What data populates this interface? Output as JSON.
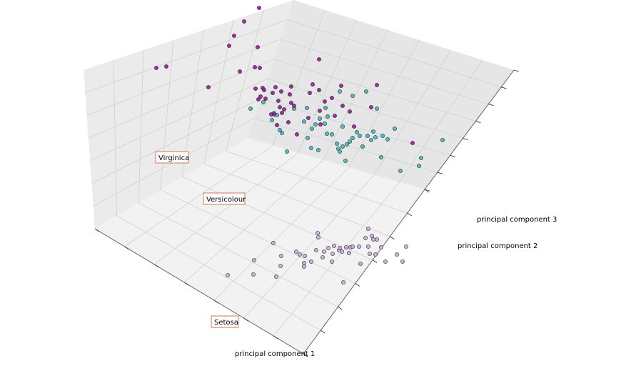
{
  "chart_data": {
    "type": "scatter",
    "projection": "3d",
    "title": "",
    "axes": {
      "x": {
        "label": "principal component 1"
      },
      "y": {
        "label": "principal component 2"
      },
      "z": {
        "label": "principal component 3"
      }
    },
    "tick_labels_visible": false,
    "grid": true,
    "colors": {
      "Setosa": "#ccaadd",
      "Versicolour": "#44b8c4",
      "Virginica": "#9a1a9a",
      "edge": "#222222",
      "label_box_edge": "#d9735e"
    },
    "annotations": [
      {
        "text": "Setosa",
        "series": "Setosa"
      },
      {
        "text": "Versicolour",
        "series": "Versicolour"
      },
      {
        "text": "Virginica",
        "series": "Virginica"
      }
    ],
    "series": [
      {
        "name": "Setosa",
        "points_xy_screen_approx": [
          [
            319,
            385
          ],
          [
            355,
            384
          ],
          [
            387,
            387
          ],
          [
            356,
            364
          ],
          [
            393,
            372
          ],
          [
            383,
            340
          ],
          [
            394,
            358
          ],
          [
            415,
            352
          ],
          [
            420,
            356
          ],
          [
            427,
            358
          ],
          [
            426,
            368
          ],
          [
            436,
            366
          ],
          [
            452,
            360
          ],
          [
            454,
            352
          ],
          [
            460,
            347
          ],
          [
            466,
            355
          ],
          [
            475,
            350
          ],
          [
            479,
            352
          ],
          [
            485,
            346
          ],
          [
            491,
            346
          ],
          [
            494,
            345
          ],
          [
            503,
            345
          ],
          [
            489,
            354
          ],
          [
            516,
            345
          ],
          [
            518,
            355
          ],
          [
            526,
            356
          ],
          [
            534,
            346
          ],
          [
            540,
            366
          ],
          [
            556,
            356
          ],
          [
            564,
            366
          ],
          [
            569,
            345
          ],
          [
            481,
            395
          ],
          [
            445,
            326
          ],
          [
            446,
            332
          ],
          [
            465,
            366
          ],
          [
            426,
            373
          ],
          [
            476,
            347
          ],
          [
            505,
            369
          ],
          [
            512,
            333
          ],
          [
            516,
            320
          ],
          [
            521,
            330
          ],
          [
            523,
            335
          ],
          [
            528,
            335
          ],
          [
            468,
            344
          ],
          [
            443,
            350
          ]
        ]
      },
      {
        "name": "Versicolour",
        "points_xy_screen_approx": [
          [
            351,
            152
          ],
          [
            369,
            143
          ],
          [
            384,
            158
          ],
          [
            388,
            161
          ],
          [
            381,
            168
          ],
          [
            392,
            182
          ],
          [
            402,
            212
          ],
          [
            395,
            186
          ],
          [
            412,
            152
          ],
          [
            426,
            170
          ],
          [
            430,
            151
          ],
          [
            437,
            180
          ],
          [
            442,
            174
          ],
          [
            448,
            166
          ],
          [
            455,
            173
          ],
          [
            458,
            187
          ],
          [
            459,
            163
          ],
          [
            465,
            188
          ],
          [
            472,
            201
          ],
          [
            474,
            208
          ],
          [
            476,
            212
          ],
          [
            480,
            205
          ],
          [
            484,
            225
          ],
          [
            486,
            202
          ],
          [
            490,
            198
          ],
          [
            494,
            193
          ],
          [
            500,
            185
          ],
          [
            504,
            190
          ],
          [
            508,
            205
          ],
          [
            515,
            190
          ],
          [
            520,
            196
          ],
          [
            523,
            184
          ],
          [
            526,
            192
          ],
          [
            534,
            220
          ],
          [
            536,
            190
          ],
          [
            543,
            195
          ],
          [
            553,
            180
          ],
          [
            561,
            239
          ],
          [
            587,
            232
          ],
          [
            590,
            221
          ],
          [
            620,
            196
          ],
          [
            513,
            128
          ],
          [
            494,
            134
          ],
          [
            528,
            152
          ],
          [
            476,
            128
          ],
          [
            480,
            177
          ],
          [
            456,
            151
          ],
          [
            431,
            193
          ],
          [
            436,
            207
          ],
          [
            446,
            210
          ]
        ]
      },
      {
        "name": "Virginica",
        "points_xy_screen_approx": [
          [
            219,
            95
          ],
          [
            233,
            93
          ],
          [
            292,
            122
          ],
          [
            321,
            64
          ],
          [
            328,
            50
          ],
          [
            342,
            30
          ],
          [
            336,
            100
          ],
          [
            357,
            94
          ],
          [
            364,
            95
          ],
          [
            361,
            66
          ],
          [
            363,
            11
          ],
          [
            358,
            124
          ],
          [
            368,
            123
          ],
          [
            365,
            135
          ],
          [
            362,
            139
          ],
          [
            370,
            126
          ],
          [
            382,
            130
          ],
          [
            386,
            122
          ],
          [
            390,
            141
          ],
          [
            392,
            150
          ],
          [
            394,
            128
          ],
          [
            398,
            153
          ],
          [
            406,
            132
          ],
          [
            408,
            144
          ],
          [
            412,
            148
          ],
          [
            408,
            121
          ],
          [
            395,
            158
          ],
          [
            388,
            175
          ],
          [
            380,
            160
          ],
          [
            434,
            130
          ],
          [
            438,
            118
          ],
          [
            447,
            126
          ],
          [
            447,
            83
          ],
          [
            455,
            142
          ],
          [
            448,
            155
          ],
          [
            465,
            137
          ],
          [
            469,
            162
          ],
          [
            478,
            120
          ],
          [
            480,
            148
          ],
          [
            490,
            156
          ],
          [
            496,
            177
          ],
          [
            520,
            150
          ],
          [
            528,
            119
          ],
          [
            578,
            200
          ],
          [
            416,
            188
          ],
          [
            432,
            165
          ],
          [
            449,
            174
          ],
          [
            404,
            171
          ],
          [
            384,
            160
          ],
          [
            372,
            138
          ]
        ]
      }
    ]
  }
}
